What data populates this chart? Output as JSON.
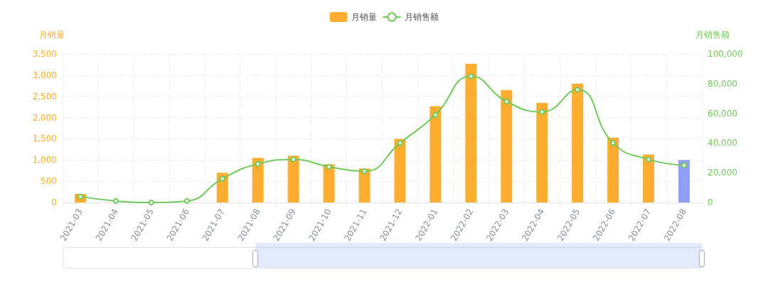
{
  "chart_data": {
    "type": "bar",
    "ylabel": "月销量",
    "y2label": "月销售额",
    "categories": [
      "2021-03",
      "2021-04",
      "2021-05",
      "2021-06",
      "2021-07",
      "2021-08",
      "2021-09",
      "2021-10",
      "2021-11",
      "2021-12",
      "2022-01",
      "2022-02",
      "2022-03",
      "2022-04",
      "2022-05",
      "2022-06",
      "2022-07",
      "2022-08"
    ],
    "series": [
      {
        "name": "月销量",
        "color": "#fdad2f",
        "colors": [
          "#fdad2f",
          "#fdad2f",
          "#fdad2f",
          "#fdad2f",
          "#fdad2f",
          "#fdad2f",
          "#fdad2f",
          "#fdad2f",
          "#fdad2f",
          "#fdad2f",
          "#fdad2f",
          "#fdad2f",
          "#fdad2f",
          "#fdad2f",
          "#fdad2f",
          "#fdad2f",
          "#fdad2f",
          "#919ef5"
        ],
        "values": [
          200,
          0,
          0,
          0,
          700,
          1050,
          1100,
          900,
          800,
          1500,
          2270,
          3270,
          2650,
          2350,
          2800,
          1530,
          1130,
          1000
        ]
      },
      {
        "name": "月销售额",
        "type": "line",
        "axis": "y2",
        "color": "#72c95b",
        "values": [
          4000,
          1000,
          0,
          1000,
          16000,
          26000,
          29000,
          24000,
          21000,
          40000,
          59000,
          85000,
          68000,
          61000,
          76000,
          40000,
          29000,
          25000
        ]
      }
    ],
    "ylim": [
      0,
      3500
    ],
    "yticks": [
      0,
      500,
      {
        "value": 1000,
        "label": "1,000"
      },
      {
        "value": 1500,
        "label": "1,500"
      },
      {
        "value": 2000,
        "label": "2,000"
      },
      {
        "value": 2500,
        "label": "2,500"
      },
      {
        "value": 3000,
        "label": "3,000"
      },
      {
        "value": 3500,
        "label": "3,500"
      }
    ],
    "y2lim": [
      0,
      100000
    ],
    "y2ticks": [
      0,
      {
        "value": 20000,
        "label": "20,000"
      },
      {
        "value": 40000,
        "label": "40,000"
      },
      {
        "value": 60000,
        "label": "60,000"
      },
      {
        "value": 80000,
        "label": "80,000"
      },
      {
        "value": 100000,
        "label": "100,000"
      }
    ],
    "grid": true,
    "legend": "top",
    "marker": "circle"
  }
}
